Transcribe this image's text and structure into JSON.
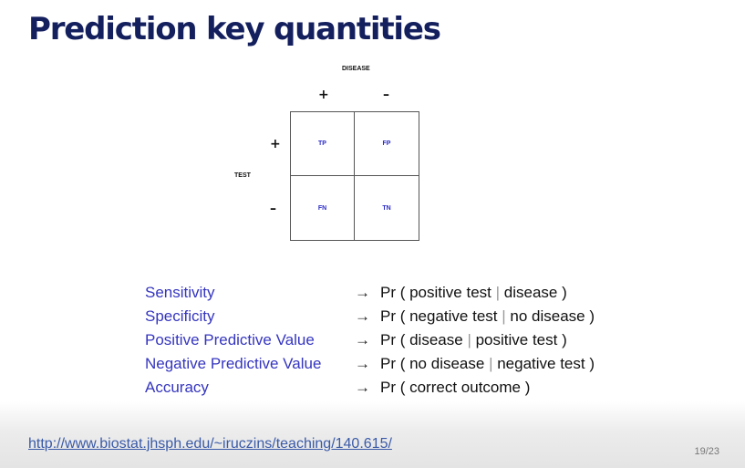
{
  "slide": {
    "title": "Prediction key quantities",
    "page_number": "19/23"
  },
  "table": {
    "column_header": "DISEASE",
    "row_header": "TEST",
    "col_signs": [
      "+",
      "–"
    ],
    "row_signs": [
      "+",
      "–"
    ],
    "cells": [
      "TP",
      "FP",
      "FN",
      "TN"
    ]
  },
  "definitions": [
    {
      "term": "Sensitivity",
      "arrow": "→",
      "pre": "Pr ( positive test ",
      "bar": "|",
      "post": " disease )"
    },
    {
      "term": "Specificity",
      "arrow": "→",
      "pre": "Pr ( negative test ",
      "bar": "|",
      "post": " no disease )"
    },
    {
      "term": "Positive Predictive Value",
      "arrow": "→",
      "pre": "Pr ( disease ",
      "bar": "|",
      "post": " positive test )"
    },
    {
      "term": "Negative Predictive Value",
      "arrow": "→",
      "pre": "Pr ( no disease ",
      "bar": "|",
      "post": " negative test )"
    },
    {
      "term": "Accuracy",
      "arrow": "→",
      "pre": "Pr ( correct outcome )",
      "bar": "",
      "post": ""
    }
  ],
  "footer": {
    "link": "http://www.biostat.jhsph.edu/~iruczins/teaching/140.615/"
  }
}
